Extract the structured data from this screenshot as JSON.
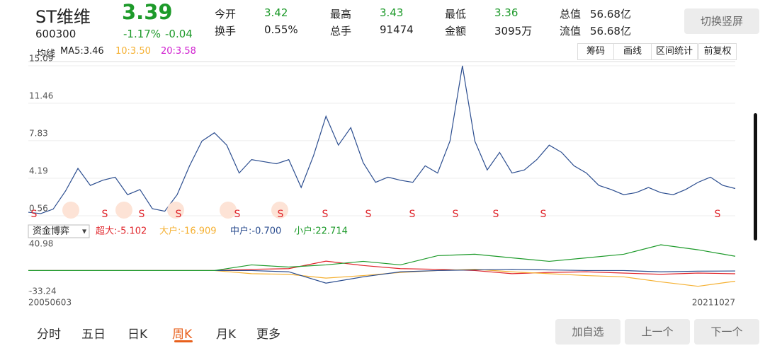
{
  "header": {
    "name": "ST维维",
    "price": "3.39",
    "code": "600300",
    "change_pct": "-1.17%",
    "change": "-0.04",
    "stats": [
      [
        "今开",
        "3.42"
      ],
      [
        "最高",
        "3.43"
      ],
      [
        "最低",
        "3.36"
      ],
      [
        "总值",
        "56.68亿"
      ],
      [
        "换手",
        "0.55%"
      ],
      [
        "总手",
        "91474"
      ],
      [
        "金额",
        "3095万"
      ],
      [
        "流值",
        "56.68亿"
      ]
    ],
    "toggle": "切换竖屏"
  },
  "ma_bar": {
    "label": "均线",
    "ma5": "MA5:3.46",
    "ma10": "10:3.50",
    "ma20": "20:3.58",
    "tools": [
      "筹码",
      "画线",
      "区间统计",
      "前复权"
    ]
  },
  "chart_data": [
    {
      "type": "line",
      "color": "#2b4d8f",
      "ylim": [
        0.56,
        15.09
      ],
      "yticks": [
        0.56,
        4.19,
        7.83,
        11.46,
        15.09
      ],
      "values": [
        0.9,
        0.77,
        1.2,
        2.96,
        5.15,
        3.5,
        4.0,
        4.3,
        2.6,
        3.1,
        1.25,
        1.0,
        2.6,
        5.4,
        7.8,
        8.6,
        7.4,
        4.7,
        6.0,
        5.8,
        5.6,
        6.0,
        3.3,
        6.4,
        10.2,
        7.4,
        9.1,
        5.7,
        3.8,
        4.3,
        4.0,
        3.8,
        5.4,
        4.7,
        7.8,
        15.09,
        7.8,
        5.0,
        6.7,
        4.7,
        5.0,
        6.0,
        7.4,
        6.7,
        5.4,
        4.7,
        3.5,
        3.1,
        2.6,
        2.8,
        3.3,
        2.8,
        2.6,
        3.1,
        3.8,
        4.3,
        3.5,
        3.2
      ],
      "signals": [
        "S",
        "S",
        "S",
        "S",
        "S",
        "S",
        "S",
        "S",
        "S",
        "S",
        "S",
        "S",
        "S"
      ]
    },
    {
      "type": "line",
      "selector": "资金博弈",
      "ylim": [
        -33.24,
        40.98
      ],
      "yticks": [
        -33.24,
        40.98
      ],
      "x_start": "20050603",
      "x_end": "20211027",
      "series": [
        {
          "name": "超大:-5.102",
          "color": "#e0252b",
          "values": [
            0,
            0,
            0,
            0,
            0,
            0,
            2,
            3,
            15,
            8,
            3,
            2,
            0,
            -5,
            -3,
            -2,
            -4,
            -6,
            -4,
            -5.1
          ]
        },
        {
          "name": "大户:-16.909",
          "color": "#f5b031",
          "values": [
            0,
            0,
            0,
            0,
            0,
            0,
            -5,
            -6,
            -12,
            -8,
            -3,
            0,
            2,
            -2,
            -5,
            -8,
            -10,
            -18,
            -25,
            -16.9
          ]
        },
        {
          "name": "中户:-0.700",
          "color": "#2b4d8f",
          "values": [
            0,
            0,
            0,
            0,
            0,
            0,
            0,
            -2,
            -20,
            -10,
            -2,
            0,
            1,
            2,
            1,
            0,
            0,
            -2,
            -1,
            -0.7
          ]
        },
        {
          "name": "小户:22.714",
          "color": "#1d9a2a",
          "values": [
            0,
            0,
            0,
            0,
            0,
            0,
            9,
            5.6,
            9,
            14.6,
            9,
            23.6,
            25.9,
            20.2,
            14.6,
            20.2,
            25.9,
            40.98,
            33,
            22.7
          ]
        }
      ]
    }
  ],
  "tabs": [
    "分时",
    "五日",
    "日K",
    "周K",
    "月K",
    "更多"
  ],
  "buttons": [
    "加自选",
    "上一个",
    "下一个"
  ]
}
